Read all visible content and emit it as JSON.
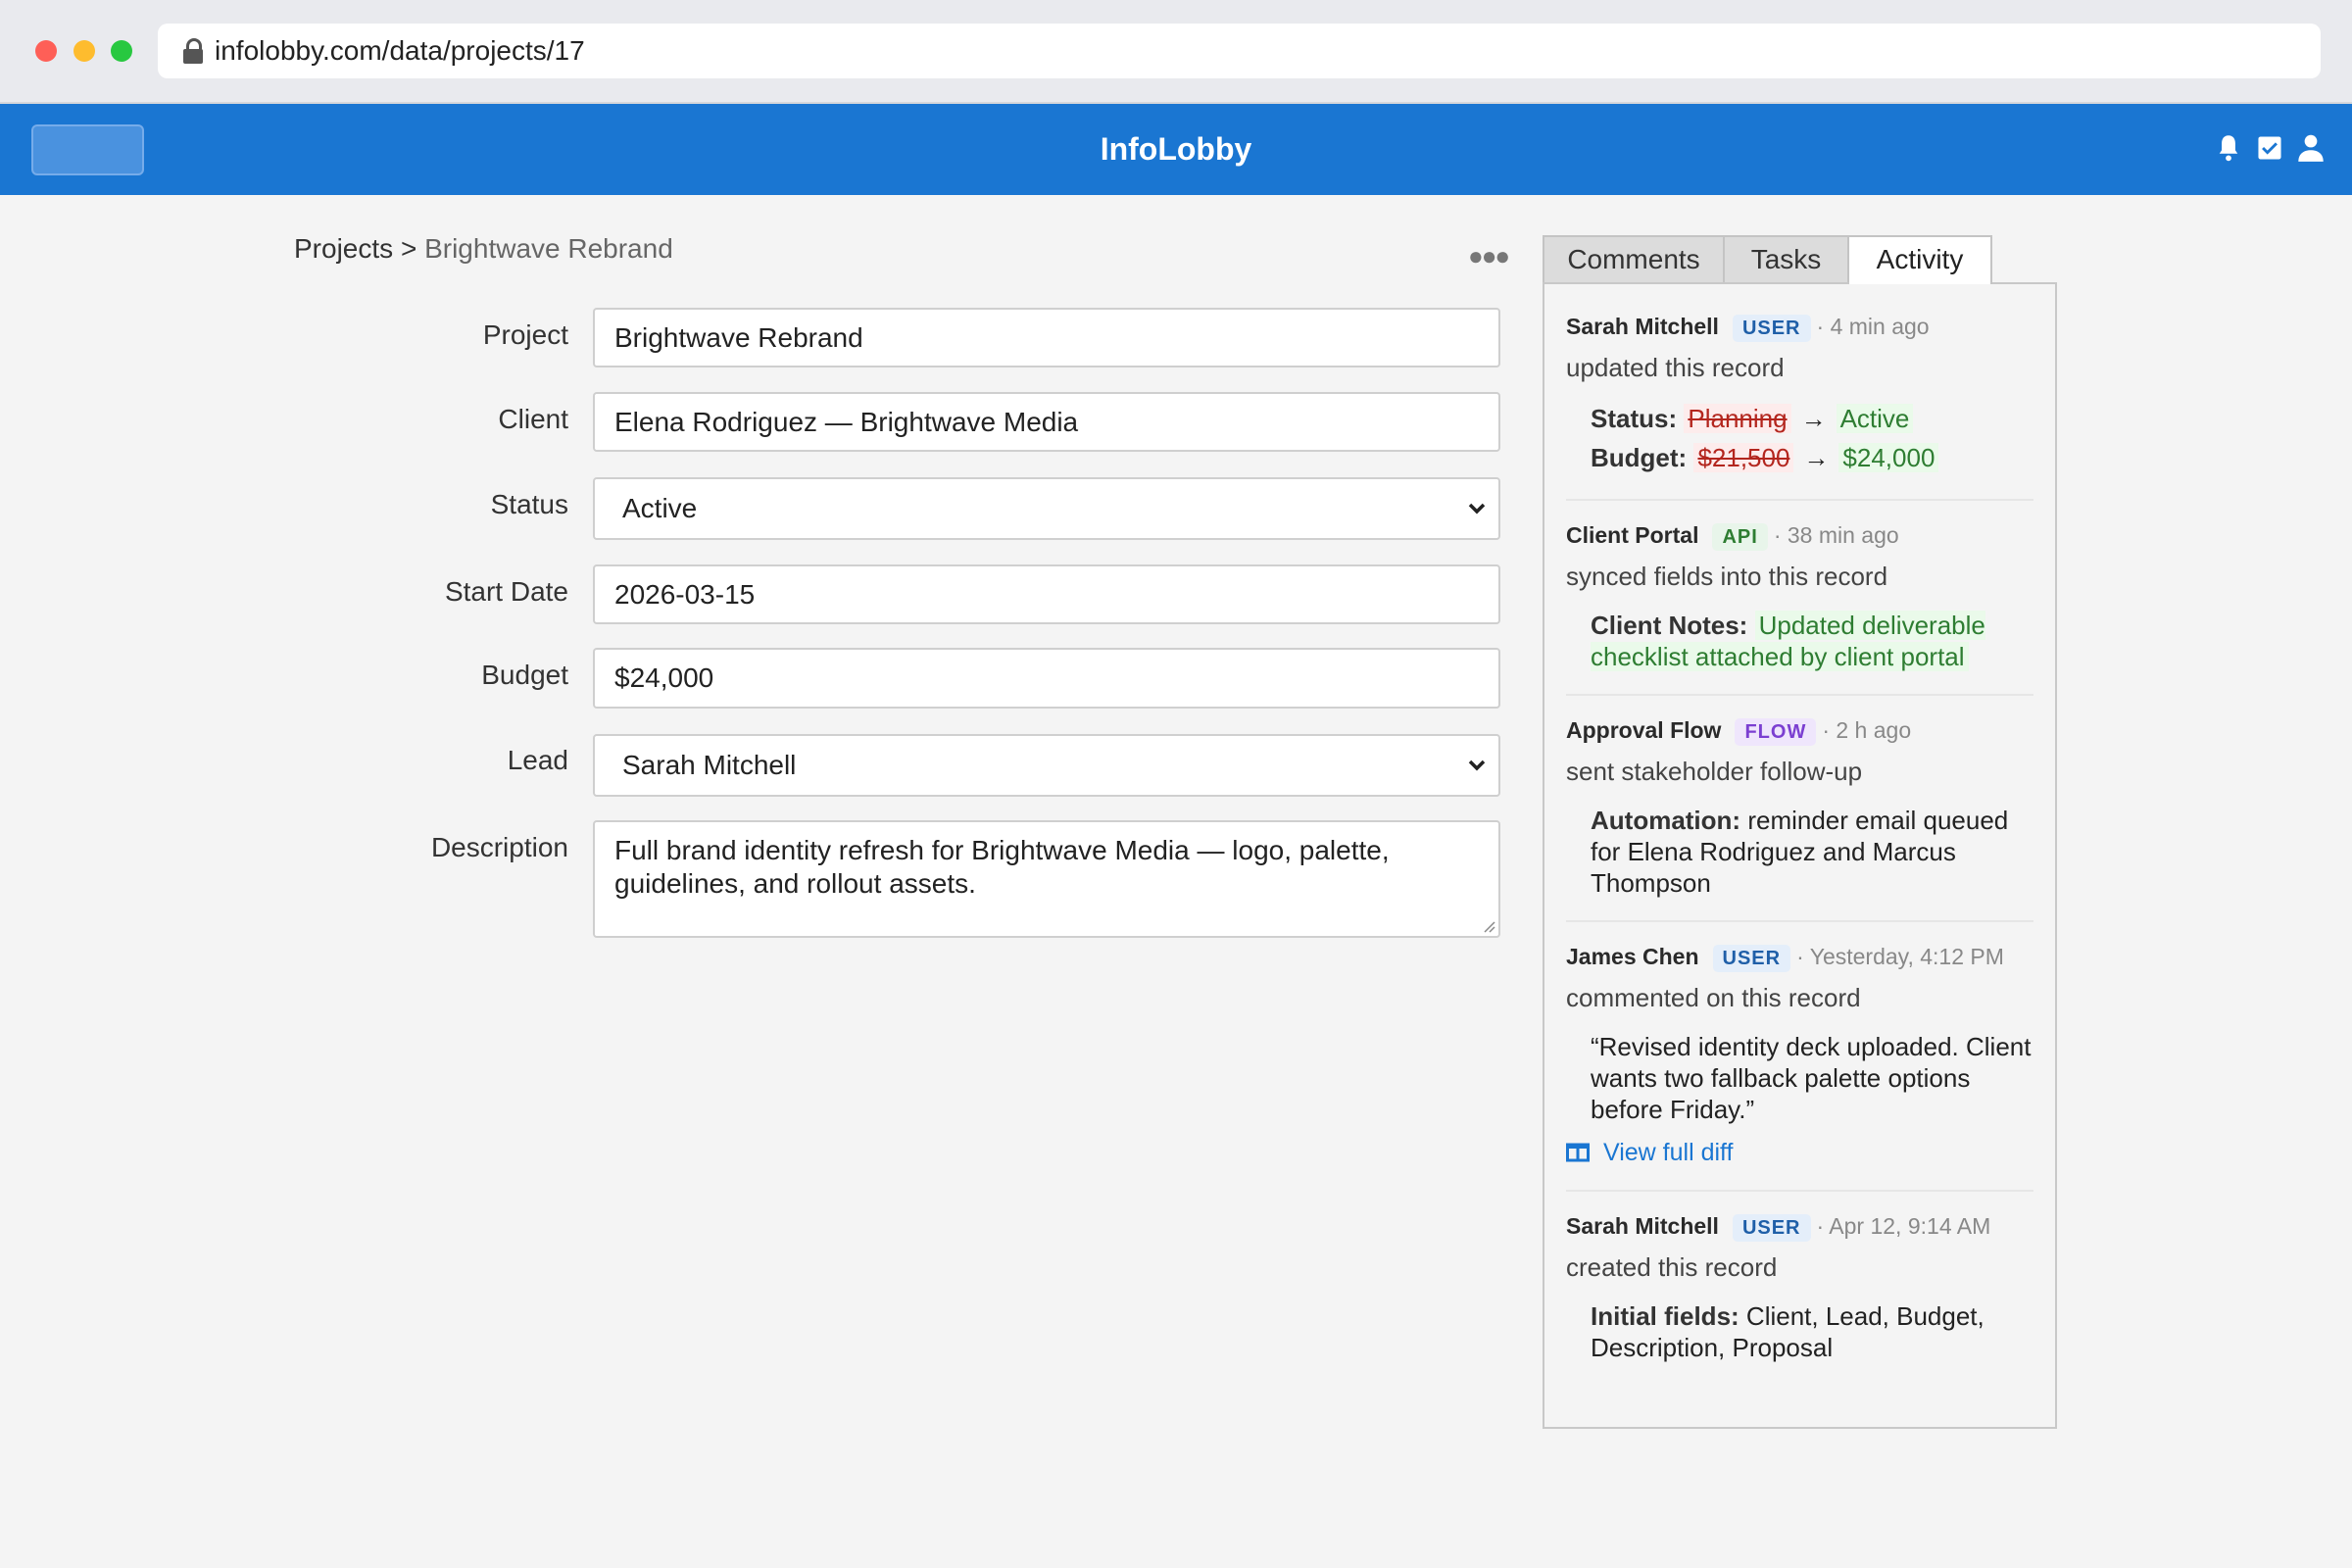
{
  "browser": {
    "url": "infolobby.com/data/projects/17"
  },
  "header": {
    "title": "InfoLobby",
    "icons": [
      "bell-icon",
      "checkbox-icon",
      "user-icon"
    ],
    "color": "#1a76d2"
  },
  "breadcrumb": {
    "root": "Projects",
    "separator": ">",
    "current": "Brightwave Rebrand"
  },
  "form": {
    "project": {
      "label": "Project",
      "value": "Brightwave Rebrand"
    },
    "client": {
      "label": "Client",
      "value": "Elena Rodriguez — Brightwave Media"
    },
    "status": {
      "label": "Status",
      "value": "Active"
    },
    "start_date": {
      "label": "Start Date",
      "value": "2026-03-15"
    },
    "budget": {
      "label": "Budget",
      "value": "$24,000"
    },
    "lead": {
      "label": "Lead",
      "value": "Sarah Mitchell"
    },
    "description": {
      "label": "Description",
      "value": "Full brand identity refresh for Brightwave Media — logo, palette, guidelines, and rollout assets."
    }
  },
  "tabs": [
    {
      "label": "Comments"
    },
    {
      "label": "Tasks"
    },
    {
      "label": "Activity",
      "active": true
    }
  ],
  "activity": [
    {
      "actor": "Sarah Mitchell",
      "badge": "USER",
      "time": "· 4 min ago",
      "action": "updated this record",
      "changes": [
        {
          "field": "Status:",
          "old": "Planning",
          "arrow": "→",
          "new": "Active"
        },
        {
          "field": "Budget:",
          "old": "$21,500",
          "arrow": "→",
          "new": "$24,000"
        }
      ]
    },
    {
      "actor": "Client Portal",
      "badge": "API",
      "time": "· 38 min ago",
      "action": "synced fields into this record",
      "detail_label": "Client Notes:",
      "detail_value": "Updated deliverable checklist attached by client portal"
    },
    {
      "actor": "Approval Flow",
      "badge": "FLOW",
      "time": "· 2 h ago",
      "action": "sent stakeholder follow-up",
      "detail_label": "Automation:",
      "detail_value": "reminder email queued for Elena Rodriguez and Marcus Thompson"
    },
    {
      "actor": "James Chen",
      "badge": "USER",
      "time": "· Yesterday, 4:12 PM",
      "action": "commented on this record",
      "detail_value": "“Revised identity deck uploaded. Client wants two fallback palette options before Friday.”",
      "link": "View full diff"
    },
    {
      "actor": "Sarah Mitchell",
      "badge": "USER",
      "time": "· Apr 12, 9:14 AM",
      "action": "created this record",
      "detail_label": "Initial fields:",
      "detail_value": "Client, Lead, Budget, Description, Proposal"
    }
  ]
}
